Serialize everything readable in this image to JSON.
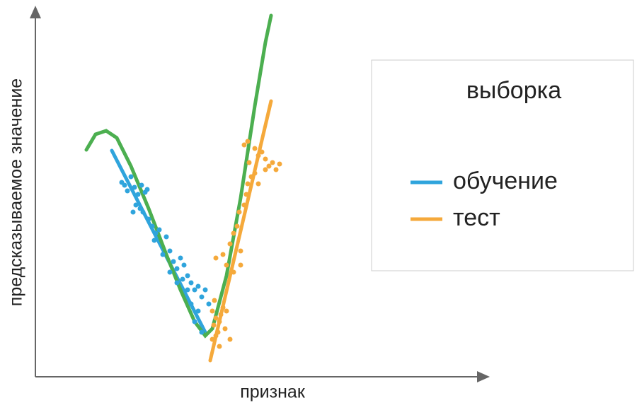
{
  "chart_data": {
    "type": "scatter",
    "x_label": "признак",
    "y_label": "предсказываемое значение",
    "xlim": [
      0,
      640
    ],
    "ylim": [
      0,
      523
    ],
    "legend_title": "выборка",
    "legend_position": "right",
    "series": [
      {
        "name": "обучение",
        "color": "#2fa4dc",
        "x": [
          122,
          126,
          130,
          135,
          140,
          145,
          150,
          155,
          142,
          138,
          148,
          158,
          160,
          165,
          170,
          175,
          185,
          180,
          190,
          195,
          200,
          205,
          210,
          215,
          208,
          220,
          225,
          230,
          235,
          240,
          245,
          230,
          225,
          235,
          220,
          215,
          190,
          200,
          168,
          152
        ],
        "y": [
          275,
          271,
          263,
          283,
          268,
          258,
          271,
          261,
          243,
          233,
          238,
          265,
          223,
          213,
          203,
          208,
          198,
          173,
          178,
          163,
          153,
          168,
          158,
          143,
          138,
          133,
          123,
          128,
          113,
          123,
          103,
          93,
          78,
          63,
          103,
          123,
          148,
          133,
          193,
          233
        ]
      },
      {
        "name": "тест",
        "color": "#f5a93b",
        "x": [
          250,
          255,
          252,
          258,
          260,
          262,
          265,
          268,
          255,
          250,
          270,
          275,
          260,
          253,
          265,
          270,
          255,
          275,
          280,
          285,
          290,
          288,
          295,
          298,
          300,
          305,
          302,
          295,
          300,
          310,
          315,
          320,
          325,
          330,
          335,
          340,
          345,
          325,
          315,
          310,
          290,
          280
        ],
        "y": [
          93,
          83,
          73,
          63,
          78,
          88,
          98,
          68,
          58,
          53,
          93,
          53,
          43,
          108,
          173,
          158,
          168,
          188,
          203,
          213,
          178,
          233,
          243,
          258,
          273,
          283,
          303,
          328,
          333,
          323,
          313,
          318,
          308,
          298,
          303,
          293,
          301,
          293,
          273,
          288,
          158,
          148
        ]
      }
    ],
    "lines": [
      {
        "color": "#2fa4dc",
        "x": [
          108,
          240
        ],
        "y": [
          320,
          63
        ]
      },
      {
        "color": "#f5a93b",
        "x": [
          247,
          333
        ],
        "y": [
          23,
          390
        ]
      },
      {
        "color": "#4caf50",
        "x": [
          72,
          85,
          100,
          115,
          135,
          160,
          185,
          205,
          225,
          240,
          250,
          270,
          290,
          310,
          325,
          333
        ],
        "y": [
          321,
          343,
          348,
          338,
          298,
          238,
          173,
          123,
          78,
          58,
          68,
          143,
          253,
          383,
          473,
          511
        ]
      }
    ]
  }
}
